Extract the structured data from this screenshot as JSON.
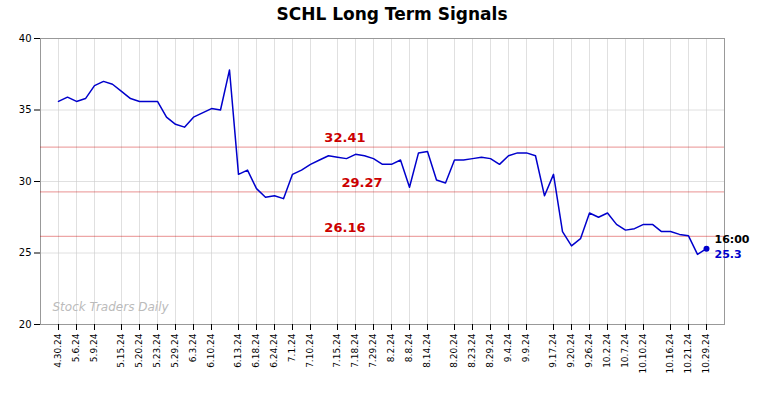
{
  "chart_data": {
    "type": "line",
    "title": "SCHL Long Term Signals",
    "categories": [
      "4.30.24",
      null,
      "5.6.24",
      null,
      "5.9.24",
      null,
      null,
      "5.15.24",
      null,
      "5.20.24",
      null,
      "5.23.24",
      null,
      "5.29.24",
      null,
      "6.3.24",
      null,
      "6.10.24",
      null,
      null,
      "6.13.24",
      null,
      "6.18.24",
      null,
      "6.24.24",
      null,
      "7.1.24",
      null,
      "7.10.24",
      null,
      null,
      "7.15.24",
      null,
      "7.18.24",
      null,
      "7.29.24",
      null,
      "8.2.24",
      null,
      "8.8.24",
      null,
      "8.14.24",
      null,
      null,
      "8.20.24",
      null,
      "8.23.24",
      null,
      "8.29.24",
      null,
      "9.4.24",
      null,
      "9.9.24",
      null,
      null,
      "9.17.24",
      null,
      "9.20.24",
      null,
      "9.26.24",
      null,
      "10.2.24",
      null,
      "10.7.24",
      null,
      "10.10.24",
      null,
      null,
      "10.16.24",
      null,
      "10.21.24",
      null,
      "10.29.24"
    ],
    "values": [
      35.6,
      35.9,
      35.6,
      35.8,
      36.7,
      37.0,
      36.8,
      36.3,
      35.8,
      35.6,
      35.6,
      35.6,
      34.5,
      34.0,
      33.8,
      34.5,
      34.8,
      35.1,
      35.0,
      37.8,
      30.5,
      30.8,
      29.5,
      28.9,
      29.0,
      28.8,
      30.5,
      30.8,
      31.2,
      31.5,
      31.8,
      31.7,
      31.6,
      31.9,
      31.8,
      31.6,
      31.2,
      31.2,
      31.5,
      29.6,
      32.0,
      32.1,
      30.1,
      29.9,
      31.5,
      31.5,
      31.6,
      31.7,
      31.6,
      31.2,
      31.8,
      32.0,
      32.0,
      31.8,
      29.0,
      30.5,
      26.5,
      25.5,
      26.0,
      27.8,
      27.5,
      27.8,
      27.0,
      26.6,
      26.7,
      27.0,
      27.0,
      26.5,
      26.5,
      26.3,
      26.2,
      24.9,
      25.3
    ],
    "color": "#0000cc",
    "ylim": [
      20,
      40
    ],
    "yticks": [
      20,
      25,
      30,
      35,
      40
    ],
    "grid": true,
    "annotations": [
      {
        "text": "32.41",
        "y": 32.41,
        "color": "#cc0000"
      },
      {
        "text": "29.27",
        "y": 29.27,
        "color": "#cc0000"
      },
      {
        "text": "26.16",
        "y": 26.16,
        "color": "#cc0000"
      }
    ],
    "watermark": "Stock Traders Daily",
    "end_labels": [
      {
        "text": "16:00",
        "color": "#000000"
      },
      {
        "text": "25.3",
        "color": "#0000cc"
      }
    ]
  }
}
